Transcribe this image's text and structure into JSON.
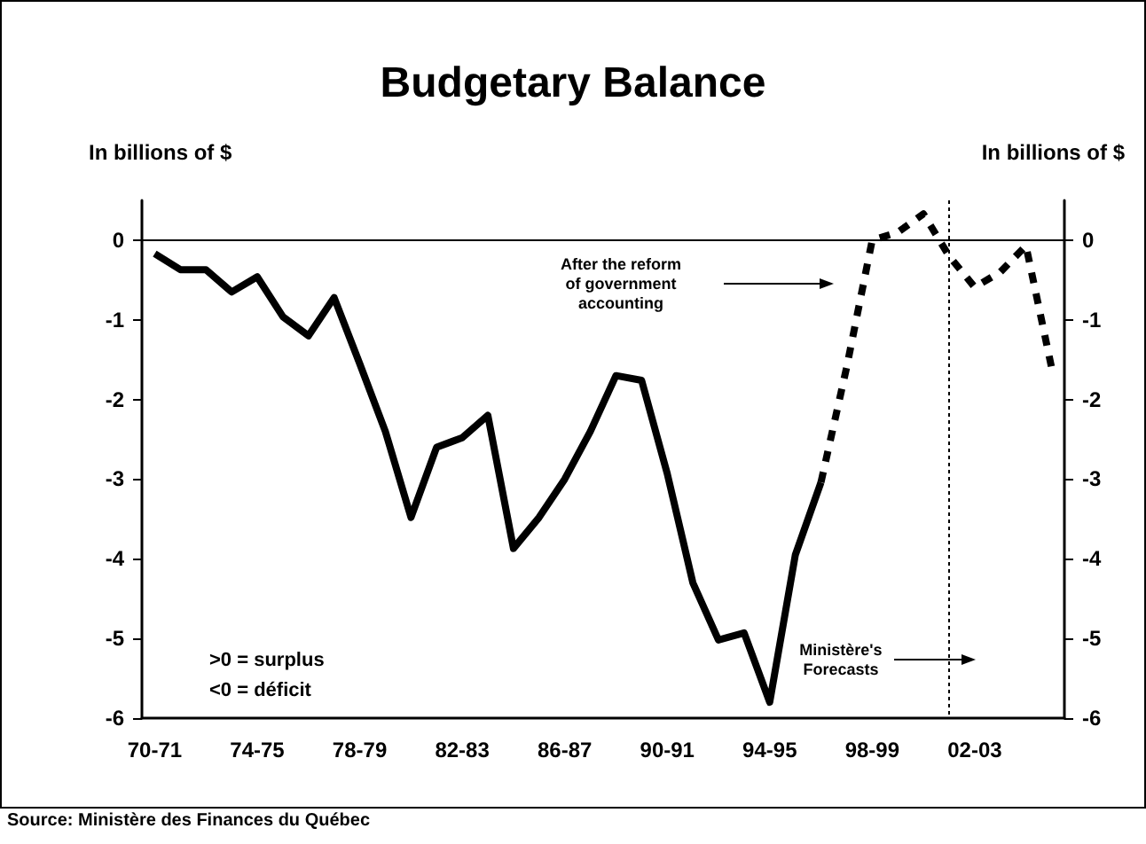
{
  "chart_data": {
    "type": "line",
    "title": "Budgetary Balance",
    "ylabel": "In billions of $",
    "y2label": "In billions of $",
    "categories": [
      "70-71",
      null,
      null,
      null,
      "74-75",
      null,
      null,
      null,
      "78-79",
      null,
      null,
      null,
      "82-83",
      null,
      null,
      null,
      "86-87",
      null,
      null,
      null,
      "90-91",
      null,
      null,
      null,
      "94-95",
      null,
      null,
      null,
      "98-99",
      null,
      null,
      null,
      "02-03",
      null,
      null,
      null
    ],
    "series": [
      {
        "color": "#000000",
        "line_style": "solid",
        "values": [
          -0.17,
          -0.37,
          -0.37,
          -0.65,
          -0.46,
          -0.96,
          -1.2,
          -0.72,
          -1.55,
          -2.4,
          -3.48,
          -2.6,
          -2.48,
          -2.2,
          -3.87,
          -3.48,
          -3.0,
          -2.4,
          -1.7,
          -1.76,
          -2.93,
          -4.3,
          -5.02,
          -4.93,
          -5.8,
          -3.95,
          -3.04,
          null,
          null,
          null,
          null,
          null,
          null,
          null,
          null,
          null
        ]
      },
      {
        "color": "#000000",
        "line_style": "dashed",
        "values": [
          null,
          null,
          null,
          null,
          null,
          null,
          null,
          null,
          null,
          null,
          null,
          null,
          null,
          null,
          null,
          null,
          null,
          null,
          null,
          null,
          null,
          null,
          null,
          null,
          null,
          null,
          -3.04,
          -1.6,
          0.0,
          0.1,
          0.33,
          -0.2,
          -0.59,
          -0.4,
          -0.07,
          -1.6
        ]
      }
    ],
    "ylim": [
      -6,
      0.5
    ],
    "yticks": [
      -6,
      -5,
      -4,
      -3,
      -2,
      -1,
      0
    ],
    "y2lim": [
      -6,
      0.5
    ],
    "y2ticks": [
      -6,
      -5,
      -4,
      -3,
      -2,
      -1,
      0
    ],
    "ref_lines": [
      {
        "axis": "y",
        "value": 0,
        "color": "#000000",
        "line_style": "solid"
      }
    ],
    "annotations": [
      "After the reform of government accounting",
      "Ministère's Forecasts",
      ">0 = surplus",
      "<0 = déficit",
      "Source: Ministère des Finances du Québec"
    ],
    "grid": false,
    "legend": false,
    "marker": "none"
  }
}
